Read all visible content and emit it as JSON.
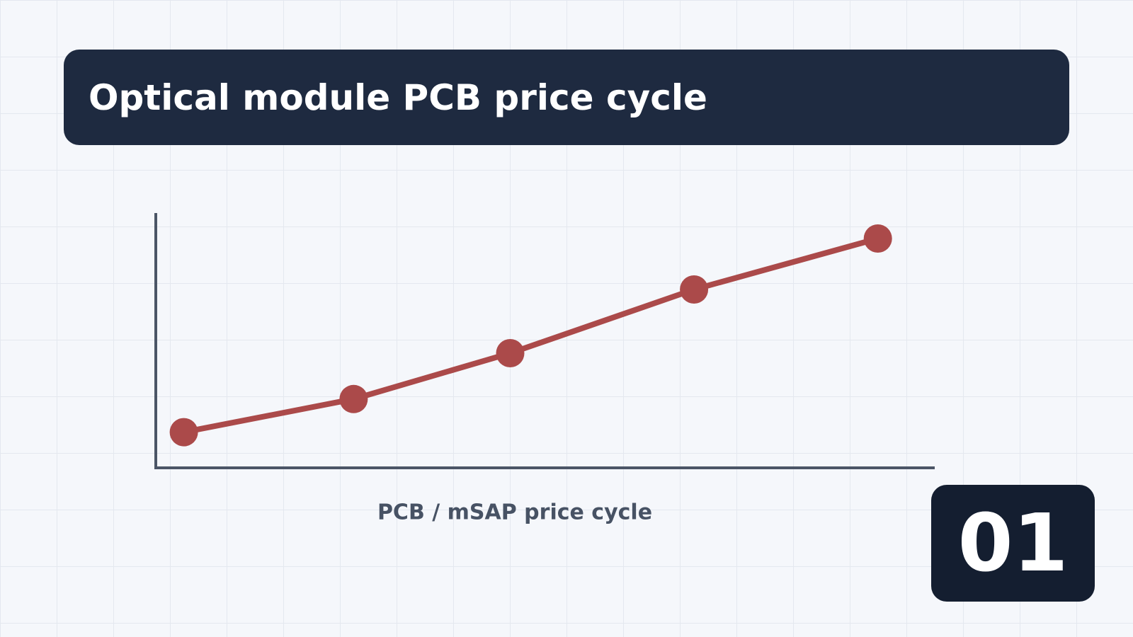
{
  "chart_data": {
    "type": "line",
    "title": "Optical module PCB price cycle",
    "x_label": "PCB / mSAP price cycle",
    "badge": "01",
    "x": [
      3.6,
      25.4,
      45.5,
      69.1,
      92.7
    ],
    "series": [
      {
        "color": "#ab4a4a",
        "values": [
          14,
          27,
          45,
          70,
          90
        ]
      }
    ],
    "xlim": [
      0,
      100
    ],
    "ylim": [
      0,
      100
    ]
  }
}
